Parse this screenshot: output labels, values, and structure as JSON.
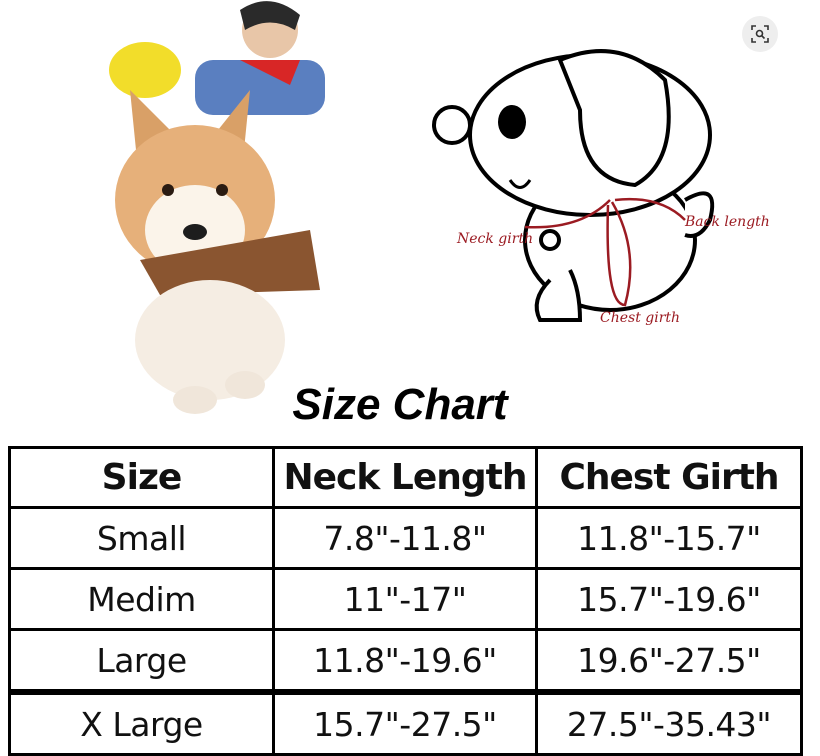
{
  "lens_button": {
    "icon": "lens-search-icon"
  },
  "diagram": {
    "labels": {
      "neck": "Neck girth",
      "back": "Back length",
      "chest": "Chest girth"
    },
    "accent": "#9b1b22"
  },
  "title": "Size Chart",
  "table": {
    "headers": [
      "Size",
      "Neck Length",
      "Chest Girth"
    ],
    "rows": [
      [
        "Small",
        "7.8\"-11.8\"",
        "11.8\"-15.7\""
      ],
      [
        "Medim",
        "11\"-17\"",
        "15.7\"-19.6\""
      ],
      [
        "Large",
        "11.8\"-19.6\"",
        "19.6\"-27.5\""
      ],
      [
        "X Large",
        "15.7\"-27.5\"",
        "27.5\"-35.43\""
      ]
    ]
  }
}
